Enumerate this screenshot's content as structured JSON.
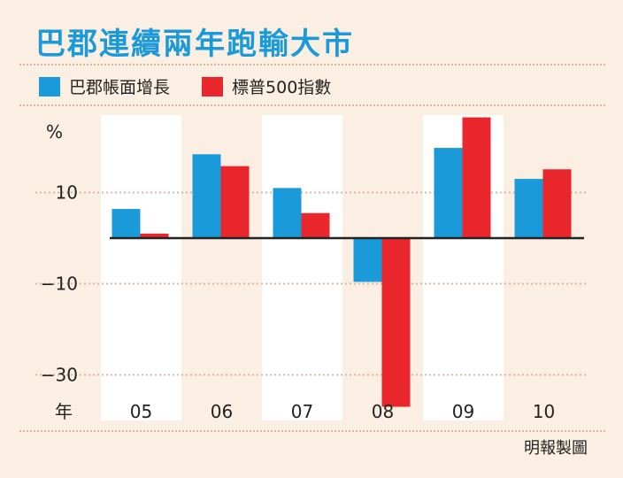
{
  "title": "巴郡連續兩年跑輸大市",
  "credit": "明報製圖",
  "colors": {
    "series1": "#1a9ad9",
    "series2": "#e8262b",
    "axis": "#222222",
    "column_band": "#ffffff",
    "background": "#fbefe4"
  },
  "chart_data": {
    "type": "bar",
    "categories": [
      "05",
      "06",
      "07",
      "08",
      "09",
      "10"
    ],
    "x_axis_label": "年",
    "y_axis_unit": "%",
    "y_tick_labels": [
      "10",
      "−10",
      "−30"
    ],
    "y_ticks": [
      10,
      -10,
      -30
    ],
    "ylim": [
      -40,
      27
    ],
    "grid": true,
    "legend_position": "top-left",
    "series": [
      {
        "name": "巴郡帳面增長",
        "values": [
          6.4,
          18.4,
          11.0,
          -9.6,
          19.8,
          13.0
        ]
      },
      {
        "name": "標普500指數",
        "values": [
          1.0,
          15.8,
          5.5,
          -37.0,
          26.5,
          15.1
        ]
      }
    ]
  }
}
